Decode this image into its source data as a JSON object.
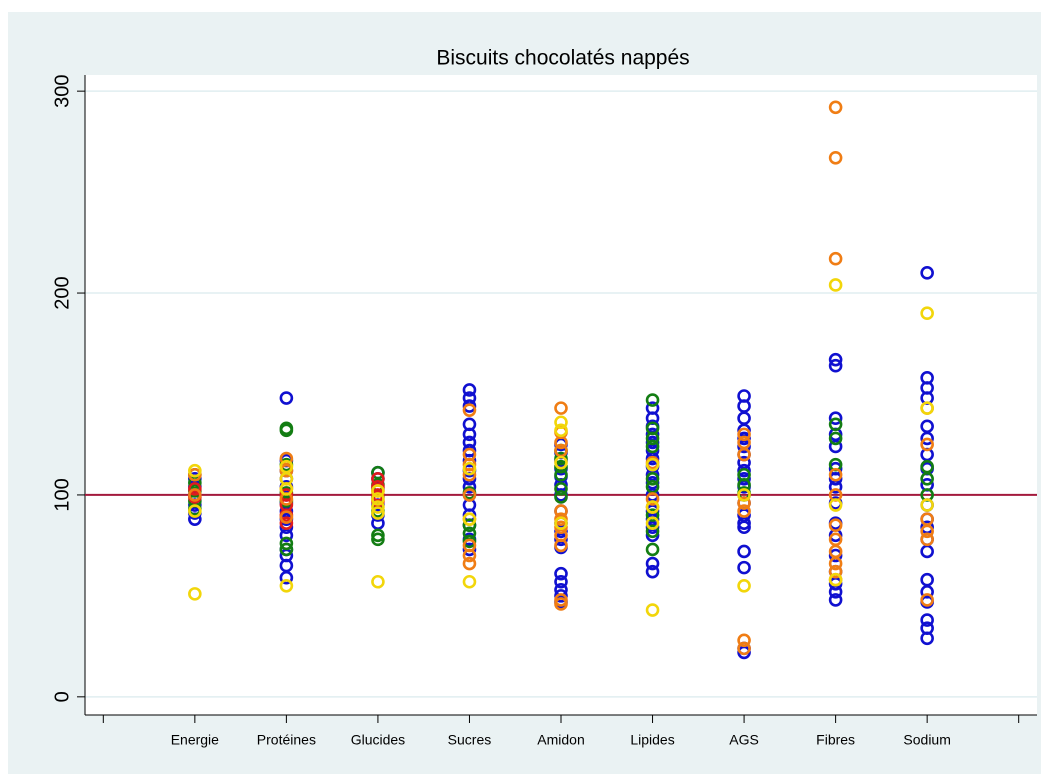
{
  "chart_data": {
    "type": "scatter",
    "title": "Biscuits chocolatés nappés",
    "categories": [
      null,
      "Energie",
      "Protéines",
      "Glucides",
      "Sucres",
      "Amidon",
      "Lipides",
      "AGS",
      "Fibres",
      "Sodium",
      null
    ],
    "ylim": [
      -9,
      308
    ],
    "yticks": [
      0,
      100,
      200,
      300
    ],
    "grid": true,
    "reference_line": {
      "value": 100,
      "color": "#a3193c"
    },
    "series": [
      {
        "color": "#1010d0",
        "x": [
          1,
          1,
          1,
          1,
          1,
          1,
          2,
          2,
          2,
          2,
          2,
          2,
          2,
          2,
          2,
          2,
          2,
          2,
          2,
          2,
          2,
          3,
          3,
          3,
          3,
          3,
          3,
          3,
          4,
          4,
          4,
          4,
          4,
          4,
          4,
          4,
          4,
          4,
          4,
          4,
          4,
          4,
          4,
          4,
          4,
          5,
          5,
          5,
          5,
          5,
          5,
          5,
          5,
          5,
          5,
          5,
          5,
          5,
          5,
          5,
          5,
          5,
          6,
          6,
          6,
          6,
          6,
          6,
          6,
          6,
          6,
          6,
          6,
          6,
          6,
          6,
          6,
          6,
          6,
          7,
          7,
          7,
          7,
          7,
          7,
          7,
          7,
          7,
          7,
          7,
          7,
          7,
          7,
          7,
          7,
          7,
          7,
          7,
          7,
          8,
          8,
          8,
          8,
          8,
          8,
          8,
          8,
          8,
          8,
          8,
          8,
          8,
          8,
          8,
          8,
          9,
          9,
          9,
          9,
          9,
          9,
          9,
          9,
          9,
          9,
          9,
          9,
          9,
          9,
          9,
          9,
          9,
          9,
          9,
          9
        ],
        "values": [
          88,
          91,
          95,
          100,
          104,
          108,
          59,
          65,
          70,
          73,
          80,
          84,
          88,
          92,
          96,
          100,
          104,
          108,
          112,
          117,
          148,
          86,
          90,
          95,
          99,
          103,
          108,
          111,
          73,
          78,
          85,
          90,
          95,
          100,
          104,
          108,
          112,
          117,
          122,
          126,
          130,
          135,
          144,
          148,
          152,
          47,
          50,
          53,
          57,
          61,
          74,
          78,
          82,
          86,
          92,
          100,
          105,
          109,
          113,
          117,
          121,
          125,
          62,
          66,
          80,
          84,
          88,
          92,
          100,
          106,
          110,
          114,
          118,
          122,
          126,
          130,
          134,
          138,
          143,
          22,
          24,
          64,
          72,
          84,
          86,
          90,
          96,
          100,
          104,
          108,
          112,
          116,
          120,
          124,
          128,
          132,
          138,
          144,
          149,
          48,
          52,
          56,
          62,
          70,
          80,
          86,
          96,
          104,
          108,
          113,
          124,
          130,
          138,
          164,
          167,
          29,
          34,
          38,
          47,
          52,
          58,
          72,
          78,
          84,
          88,
          95,
          105,
          113,
          120,
          128,
          134,
          148,
          153,
          158,
          210
        ]
      },
      {
        "color": "#137d13",
        "x": [
          1,
          1,
          1,
          1,
          1,
          2,
          2,
          2,
          2,
          2,
          2,
          2,
          3,
          3,
          3,
          3,
          3,
          4,
          4,
          4,
          4,
          5,
          5,
          5,
          5,
          5,
          5,
          6,
          6,
          6,
          6,
          6,
          6,
          6,
          6,
          6,
          7,
          7,
          7,
          8,
          8,
          8,
          9,
          9,
          9
        ],
        "values": [
          93,
          97,
          102,
          106,
          110,
          73,
          76,
          97,
          101,
          115,
          132,
          133,
          78,
          80,
          92,
          105,
          111,
          77,
          81,
          85,
          101,
          99,
          103,
          110,
          114,
          118,
          122,
          73,
          82,
          90,
          104,
          108,
          124,
          128,
          133,
          147,
          101,
          105,
          110,
          115,
          128,
          135,
          100,
          108,
          114
        ]
      },
      {
        "color": "#e01c1c",
        "x": [
          1,
          1,
          2,
          2,
          2,
          2,
          3,
          3,
          3,
          3
        ],
        "values": [
          99,
          103,
          86,
          90,
          95,
          100,
          97,
          100,
          104,
          108
        ]
      },
      {
        "color": "#f07d14",
        "x": [
          1,
          1,
          2,
          2,
          2,
          2,
          2,
          3,
          4,
          4,
          4,
          4,
          4,
          4,
          4,
          4,
          4,
          5,
          5,
          5,
          5,
          5,
          5,
          5,
          5,
          5,
          5,
          5,
          6,
          6,
          6,
          7,
          7,
          7,
          7,
          7,
          7,
          7,
          8,
          8,
          8,
          8,
          8,
          8,
          8,
          8,
          8,
          8,
          8,
          9,
          9,
          9,
          9,
          9,
          9
        ],
        "values": [
          100,
          110,
          89,
          98,
          103,
          112,
          118,
          102,
          66,
          70,
          75,
          88,
          100,
          110,
          115,
          120,
          142,
          46,
          48,
          75,
          80,
          84,
          88,
          92,
          122,
          126,
          131,
          143,
          94,
          98,
          116,
          24,
          28,
          92,
          96,
          120,
          126,
          130,
          58,
          62,
          66,
          72,
          78,
          85,
          100,
          110,
          217,
          267,
          292,
          48,
          78,
          82,
          88,
          125,
          143
        ]
      },
      {
        "color": "#f2d60a",
        "x": [
          1,
          1,
          1,
          2,
          2,
          2,
          2,
          3,
          3,
          3,
          3,
          3,
          4,
          4,
          4,
          5,
          5,
          5,
          5,
          6,
          6,
          6,
          6,
          7,
          7,
          8,
          8,
          8,
          9,
          9,
          9
        ],
        "values": [
          51,
          92,
          112,
          55,
          103,
          108,
          114,
          57,
          91,
          94,
          98,
          102,
          57,
          88,
          113,
          136,
          132,
          116,
          86,
          43,
          86,
          94,
          115,
          55,
          100,
          58,
          95,
          204,
          95,
          190,
          143
        ]
      }
    ]
  }
}
